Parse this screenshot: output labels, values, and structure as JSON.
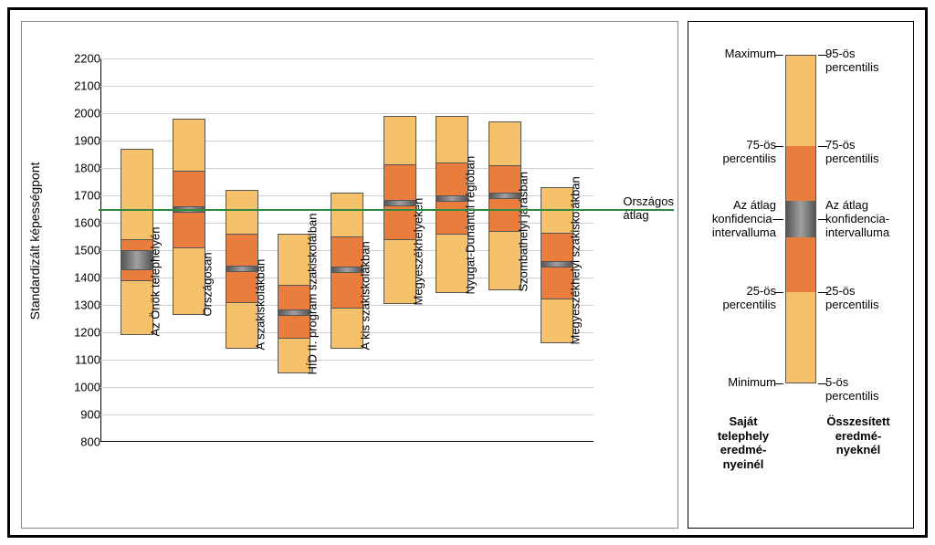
{
  "chart": {
    "type": "boxplot",
    "y_label": "Standardizált képességpont",
    "y_min": 800,
    "y_max": 2200,
    "y_tick_step": 100,
    "national_avg": 1650,
    "national_avg_label": "Országos\nátlag",
    "grid_color": "#d0d0d0",
    "national_line_color": "#2d8a3e",
    "colors": {
      "outer": "#f5c26b",
      "quartile": "#e87d3e",
      "ci": "#707070"
    },
    "categories": [
      {
        "label": "Az Önök telephelyén",
        "p5": 1190,
        "p25": 1390,
        "ci_lo": 1430,
        "ci_hi": 1500,
        "p75": 1540,
        "p95": 1870
      },
      {
        "label": "Országosan",
        "p5": 1265,
        "p25": 1510,
        "ci_lo": 1640,
        "ci_hi": 1660,
        "p75": 1790,
        "p95": 1980
      },
      {
        "label": "A szakiskolákban",
        "p5": 1140,
        "p25": 1310,
        "ci_lo": 1425,
        "ci_hi": 1445,
        "p75": 1560,
        "p95": 1720
      },
      {
        "label": "HÍD II. program szakiskoláiban",
        "p5": 1050,
        "p25": 1180,
        "ci_lo": 1265,
        "ci_hi": 1285,
        "p75": 1375,
        "p95": 1560
      },
      {
        "label": "A kis szakiskolákban",
        "p5": 1140,
        "p25": 1290,
        "ci_lo": 1420,
        "ci_hi": 1440,
        "p75": 1550,
        "p95": 1710
      },
      {
        "label": "Megyeszékhelyeken",
        "p5": 1305,
        "p25": 1540,
        "ci_lo": 1665,
        "ci_hi": 1685,
        "p75": 1815,
        "p95": 1990
      },
      {
        "label": "Nyugat-Dunántúl régióban",
        "p5": 1345,
        "p25": 1560,
        "ci_lo": 1680,
        "ci_hi": 1700,
        "p75": 1820,
        "p95": 1990
      },
      {
        "label": "Szombathelyi járásban",
        "p5": 1355,
        "p25": 1570,
        "ci_lo": 1690,
        "ci_hi": 1710,
        "p75": 1810,
        "p95": 1970
      },
      {
        "label": "Megyeszékhelyi szakiskolákban",
        "p5": 1160,
        "p25": 1325,
        "ci_lo": 1440,
        "ci_hi": 1460,
        "p75": 1565,
        "p95": 1730
      }
    ]
  },
  "legend": {
    "left_labels": {
      "top": "Maximum",
      "p75": "75-ös\npercentilis",
      "ci": "Az átlag\nkonfidencia-\nintervalluma",
      "p25": "25-ös\npercentilis",
      "bottom": "Minimum"
    },
    "right_labels": {
      "top": "95-ös\npercentilis",
      "p75": "75-ös\npercentilis",
      "ci": "Az átlag\nkonfidencia-\nintervalluma",
      "p25": "25-ös\npercentilis",
      "bottom": "5-ös\npercentilis"
    },
    "left_title": "Saját\ntelephely\neredmé-\nnyeinél",
    "right_title": "Összesített\neredmé-\nnyeknél"
  }
}
